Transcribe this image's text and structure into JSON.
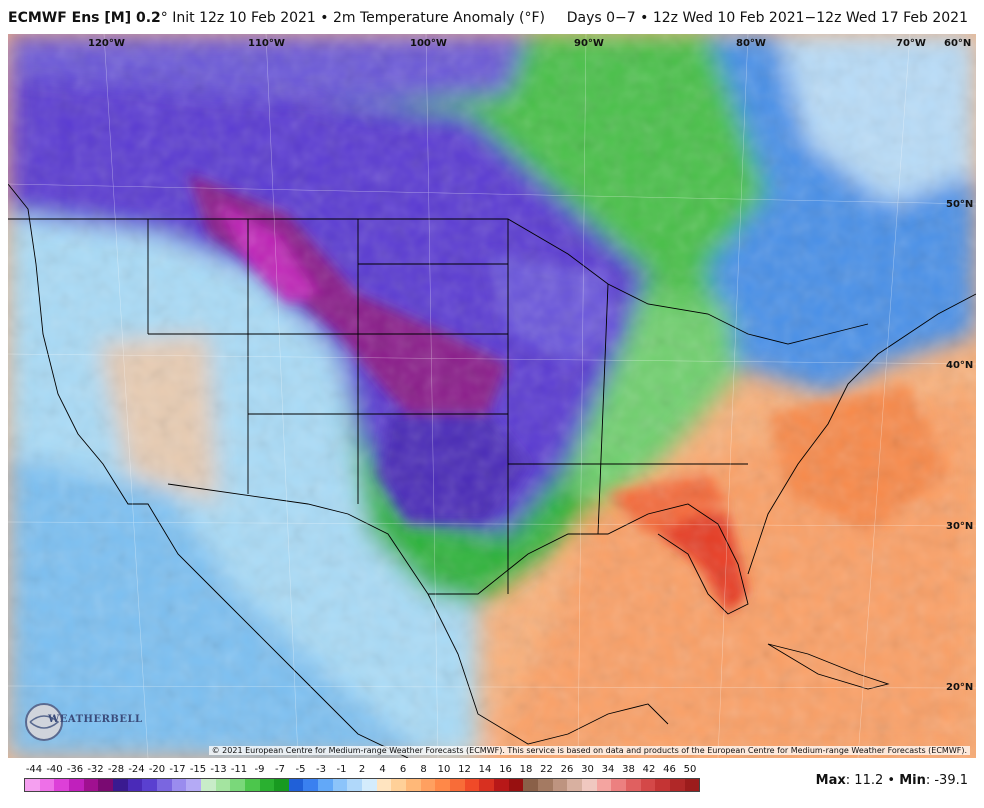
{
  "header": {
    "model_name": "ECMWF Ens [M] 0.2",
    "degree_mark": "°",
    "init_text": "Init 12z 10 Feb 2021",
    "bullet": " • ",
    "field_text": "2m Temperature Anomaly (°F)",
    "valid_text": "Days 0−7 • 12z Wed 10 Feb 2021−12z Wed 17 Feb 2021"
  },
  "map": {
    "longitude_labels": [
      "120°W",
      "110°W",
      "100°W",
      "90°W",
      "80°W",
      "70°W",
      "60°N"
    ],
    "latitude_labels": [
      "50°N",
      "40°N",
      "30°N",
      "20°N"
    ],
    "copyright": "© 2021 European Centre for Medium-range Weather Forecasts (ECMWF). This service is based on data and products of the European Centre for Medium-range Weather Forecasts (ECMWF).",
    "logo_text": "WEATHERBELL"
  },
  "colorbar": {
    "tick_labels": [
      "-44",
      "-40",
      "-36",
      "-32",
      "-28",
      "-24",
      "-20",
      "-17",
      "-15",
      "-13",
      "-11",
      "-9",
      "-7",
      "-5",
      "-3",
      "-1",
      "2",
      "4",
      "6",
      "8",
      "10",
      "12",
      "14",
      "16",
      "18",
      "22",
      "26",
      "30",
      "34",
      "38",
      "42",
      "46",
      "50"
    ],
    "colors": [
      "#f5a0f0",
      "#ee70e8",
      "#dd40d8",
      "#c020bc",
      "#a01090",
      "#7a0a72",
      "#3a1a90",
      "#4a2ab8",
      "#5a40d0",
      "#7a66e0",
      "#9a8cee",
      "#b4aaf5",
      "#c8ecc8",
      "#a4e4a0",
      "#7ad87a",
      "#4cc64c",
      "#2ab030",
      "#189a20",
      "#2060d8",
      "#3a80f0",
      "#62a8f8",
      "#8cc4fa",
      "#b0d8fa",
      "#d4ecfc",
      "#ffe4c0",
      "#ffd098",
      "#ffb878",
      "#ffa060",
      "#ff8848",
      "#f86c38",
      "#f04a28",
      "#d83020",
      "#b81818",
      "#981010",
      "#8a6048",
      "#a47a62",
      "#be9480",
      "#d8b0a0",
      "#f0c8c0",
      "#f4a4a0",
      "#ec8080",
      "#e06060",
      "#d44848",
      "#c43434",
      "#b02828",
      "#9c1c1c"
    ]
  },
  "stats": {
    "max_label": "Max",
    "max_value": ": 11.2",
    "separator": " • ",
    "min_label": "Min",
    "min_value": ": -39.1"
  }
}
